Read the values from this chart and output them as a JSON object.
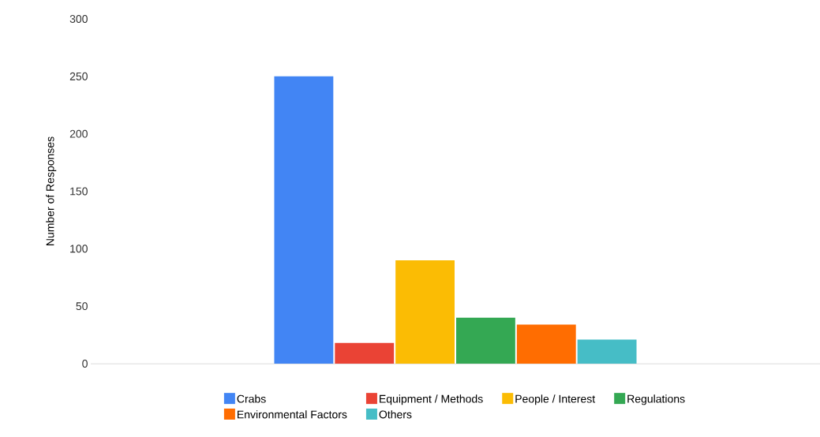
{
  "chart_data": {
    "type": "bar",
    "categories": [
      null
    ],
    "ylabel": "Number of Responses",
    "ylim": [
      0,
      300
    ],
    "yticks": [
      0,
      50,
      100,
      150,
      200,
      250,
      300
    ],
    "grid": false,
    "legend": "bottom",
    "series": [
      {
        "name": "Crabs",
        "color": "#4285f4",
        "values": [
          250
        ]
      },
      {
        "name": "Equipment / Methods",
        "color": "#ea4335",
        "values": [
          18
        ]
      },
      {
        "name": "People / Interest",
        "color": "#fbbc04",
        "values": [
          90
        ]
      },
      {
        "name": "Regulations",
        "color": "#34a853",
        "values": [
          40
        ]
      },
      {
        "name": "Environmental Factors",
        "color": "#ff6d01",
        "values": [
          34
        ]
      },
      {
        "name": "Others",
        "color": "#46bdc6",
        "values": [
          21
        ]
      }
    ]
  }
}
